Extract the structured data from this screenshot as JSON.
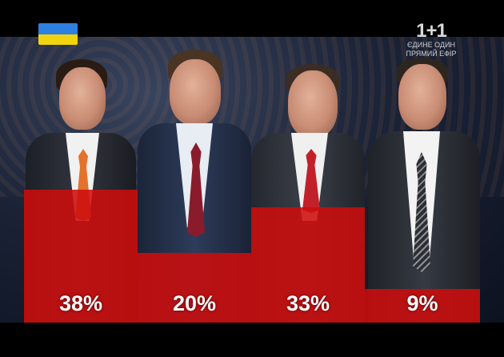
{
  "broadcast": {
    "flag_colors": {
      "top": "#2d7fe0",
      "bottom": "#f2d40e"
    },
    "channel_logo": "1+1",
    "channel_line1": "ЄДИНЕ ОДИН",
    "channel_line2": "ПРЯМИЙ ЕФІР"
  },
  "poll": {
    "bar_color": "#cd0c0c",
    "results": [
      {
        "percent_label": "38%",
        "value": 38
      },
      {
        "percent_label": "20%",
        "value": 20
      },
      {
        "percent_label": "33%",
        "value": 33
      },
      {
        "percent_label": "9%",
        "value": 9
      }
    ]
  }
}
